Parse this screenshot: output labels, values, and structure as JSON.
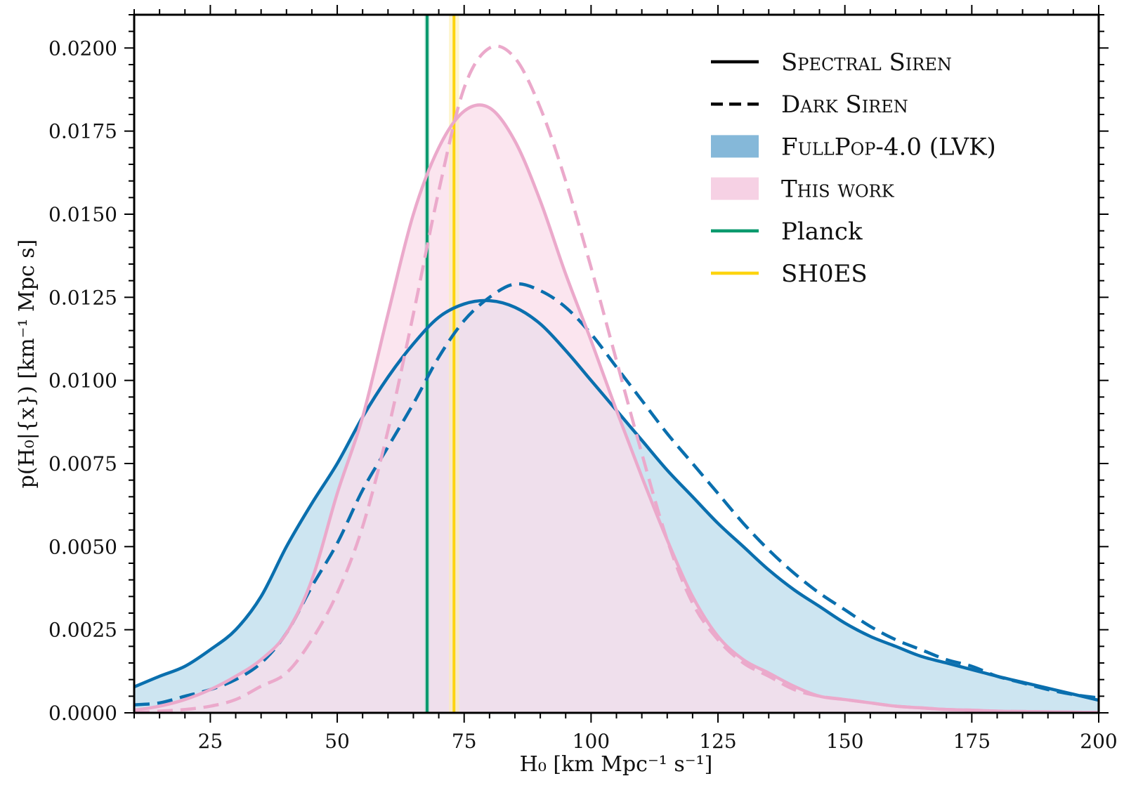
{
  "chart_data": {
    "type": "line",
    "title": "",
    "xlabel": "H₀ [km Mpc⁻¹ s⁻¹]",
    "ylabel": "p(H₀|{x}) [km⁻¹ Mpc s]",
    "xlim": [
      10,
      200
    ],
    "ylim": [
      0,
      0.021
    ],
    "xticks": [
      25,
      50,
      75,
      100,
      125,
      150,
      175,
      200
    ],
    "xtick_labels": [
      "25",
      "50",
      "75",
      "100",
      "125",
      "150",
      "175",
      "200"
    ],
    "yticks": [
      0,
      0.0025,
      0.005,
      0.0075,
      0.01,
      0.0125,
      0.015,
      0.0175,
      0.02
    ],
    "ytick_labels": [
      "0.0000",
      "0.0025",
      "0.0050",
      "0.0075",
      "0.0100",
      "0.0125",
      "0.0150",
      "0.0175",
      "0.0200"
    ],
    "grid": false,
    "legend_position": "top-right",
    "x": [
      10,
      15,
      20,
      25,
      30,
      35,
      40,
      45,
      50,
      55,
      60,
      65,
      70,
      75,
      80,
      85,
      90,
      95,
      100,
      105,
      110,
      115,
      120,
      125,
      130,
      135,
      140,
      145,
      150,
      155,
      160,
      165,
      170,
      175,
      180,
      185,
      190,
      195,
      200
    ],
    "series": [
      {
        "name": "FullPop-4.0 (LVK) — Spectral Siren",
        "color": "#0a6fae",
        "style": "solid",
        "filled": true,
        "fill_color": "#bcdcec",
        "values": [
          0.00078,
          0.0011,
          0.0014,
          0.0019,
          0.0025,
          0.0035,
          0.005,
          0.0063,
          0.0075,
          0.0089,
          0.0101,
          0.0111,
          0.0119,
          0.0123,
          0.0124,
          0.0122,
          0.0117,
          0.0109,
          0.01,
          0.0091,
          0.0082,
          0.0073,
          0.0065,
          0.0057,
          0.005,
          0.0043,
          0.0037,
          0.0032,
          0.0027,
          0.0023,
          0.002,
          0.0017,
          0.0015,
          0.0013,
          0.0011,
          0.00092,
          0.00074,
          0.00056,
          0.00038
        ]
      },
      {
        "name": "FullPop-4.0 (LVK) — Dark Siren",
        "color": "#0a6fae",
        "style": "dashed",
        "filled": false,
        "values": [
          0.00024,
          0.0003,
          0.0005,
          0.0007,
          0.001,
          0.0015,
          0.0024,
          0.0038,
          0.0051,
          0.0067,
          0.008,
          0.0093,
          0.0107,
          0.0118,
          0.0125,
          0.0129,
          0.0127,
          0.0122,
          0.0114,
          0.0104,
          0.0094,
          0.0084,
          0.0075,
          0.0066,
          0.0057,
          0.0049,
          0.0042,
          0.0036,
          0.0031,
          0.0026,
          0.0022,
          0.0019,
          0.0016,
          0.0014,
          0.0011,
          0.0009,
          0.0007,
          0.00055,
          0.00045
        ]
      },
      {
        "name": "This work — Spectral Siren",
        "color": "#eba9cb",
        "style": "solid",
        "filled": true,
        "fill_color": "#f9dcea",
        "values": [
          8e-05,
          0.0002,
          0.0004,
          0.0007,
          0.0011,
          0.0016,
          0.0024,
          0.004,
          0.0066,
          0.0089,
          0.012,
          0.015,
          0.017,
          0.0181,
          0.0182,
          0.0172,
          0.0154,
          0.0132,
          0.0112,
          0.0091,
          0.0071,
          0.0052,
          0.0035,
          0.0023,
          0.0016,
          0.0012,
          0.0008,
          0.0005,
          0.0004,
          0.0003,
          0.0002,
          0.00015,
          0.0001,
          8e-05,
          5e-05,
          4e-05,
          3e-05,
          2e-05,
          1e-05
        ]
      },
      {
        "name": "This work — Dark Siren",
        "color": "#eba9cb",
        "style": "dashed",
        "filled": false,
        "values": [
          0.0,
          5e-05,
          0.0001,
          0.0002,
          0.0004,
          0.0008,
          0.0012,
          0.0022,
          0.0036,
          0.0056,
          0.0085,
          0.012,
          0.0157,
          0.0188,
          0.02,
          0.0197,
          0.0182,
          0.016,
          0.0134,
          0.0106,
          0.0078,
          0.0052,
          0.0033,
          0.0022,
          0.0015,
          0.0011,
          0.0007,
          0.0005,
          0.0004,
          0.0003,
          0.0002,
          0.00015,
          0.0001,
          8e-05,
          5e-05,
          4e-05,
          3e-05,
          2e-05,
          1e-05
        ]
      }
    ],
    "vertical_lines": [
      {
        "name": "Planck",
        "value": 67.7,
        "band": [
          67.2,
          68.2
        ],
        "color": "#0a9a6e",
        "band_color": "#a8dccb"
      },
      {
        "name": "SH0ES",
        "value": 73.0,
        "band": [
          72.0,
          74.0
        ],
        "color": "#fdd40f",
        "band_color": "#fdf0b0"
      }
    ],
    "legend": [
      {
        "label": "Spectral Siren",
        "kind": "line-solid",
        "color": "#000000",
        "smallcaps": true
      },
      {
        "label": "Dark Siren",
        "kind": "line-dashed",
        "color": "#000000",
        "smallcaps": true
      },
      {
        "label": "FullPop-4.0 (LVK)",
        "kind": "patch",
        "color": "#85b8d9",
        "smallcaps": true
      },
      {
        "label": "This work",
        "kind": "patch",
        "color": "#f6d1e4",
        "smallcaps": true
      },
      {
        "label": "Planck",
        "kind": "line-solid",
        "color": "#0a9a6e",
        "smallcaps": false
      },
      {
        "label": "SH0ES",
        "kind": "line-solid",
        "color": "#fdd40f",
        "smallcaps": false
      }
    ]
  }
}
